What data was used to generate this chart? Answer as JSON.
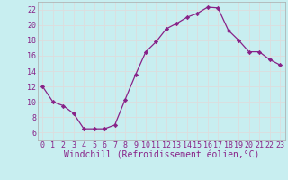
{
  "x": [
    0,
    1,
    2,
    3,
    4,
    5,
    6,
    7,
    8,
    9,
    10,
    11,
    12,
    13,
    14,
    15,
    16,
    17,
    18,
    19,
    20,
    21,
    22,
    23
  ],
  "y": [
    12,
    10,
    9.5,
    8.5,
    6.5,
    6.5,
    6.5,
    7,
    10.3,
    13.5,
    16.5,
    17.8,
    19.5,
    20.2,
    21.0,
    21.5,
    22.3,
    22.2,
    19.3,
    18.0,
    16.5,
    16.5,
    15.5,
    14.8
  ],
  "line_color": "#882288",
  "marker": "D",
  "marker_size": 2.2,
  "bg_color": "#c8eef0",
  "grid_color": "#dddddd",
  "xlabel": "Windchill (Refroidissement éolien,°C)",
  "ylim": [
    5,
    23
  ],
  "xlim": [
    -0.5,
    23.5
  ],
  "yticks": [
    6,
    8,
    10,
    12,
    14,
    16,
    18,
    20,
    22
  ],
  "xticks": [
    0,
    1,
    2,
    3,
    4,
    5,
    6,
    7,
    8,
    9,
    10,
    11,
    12,
    13,
    14,
    15,
    16,
    17,
    18,
    19,
    20,
    21,
    22,
    23
  ],
  "xlabel_color": "#882288",
  "tick_color": "#882288",
  "label_fontsize": 7,
  "tick_fontsize": 6
}
